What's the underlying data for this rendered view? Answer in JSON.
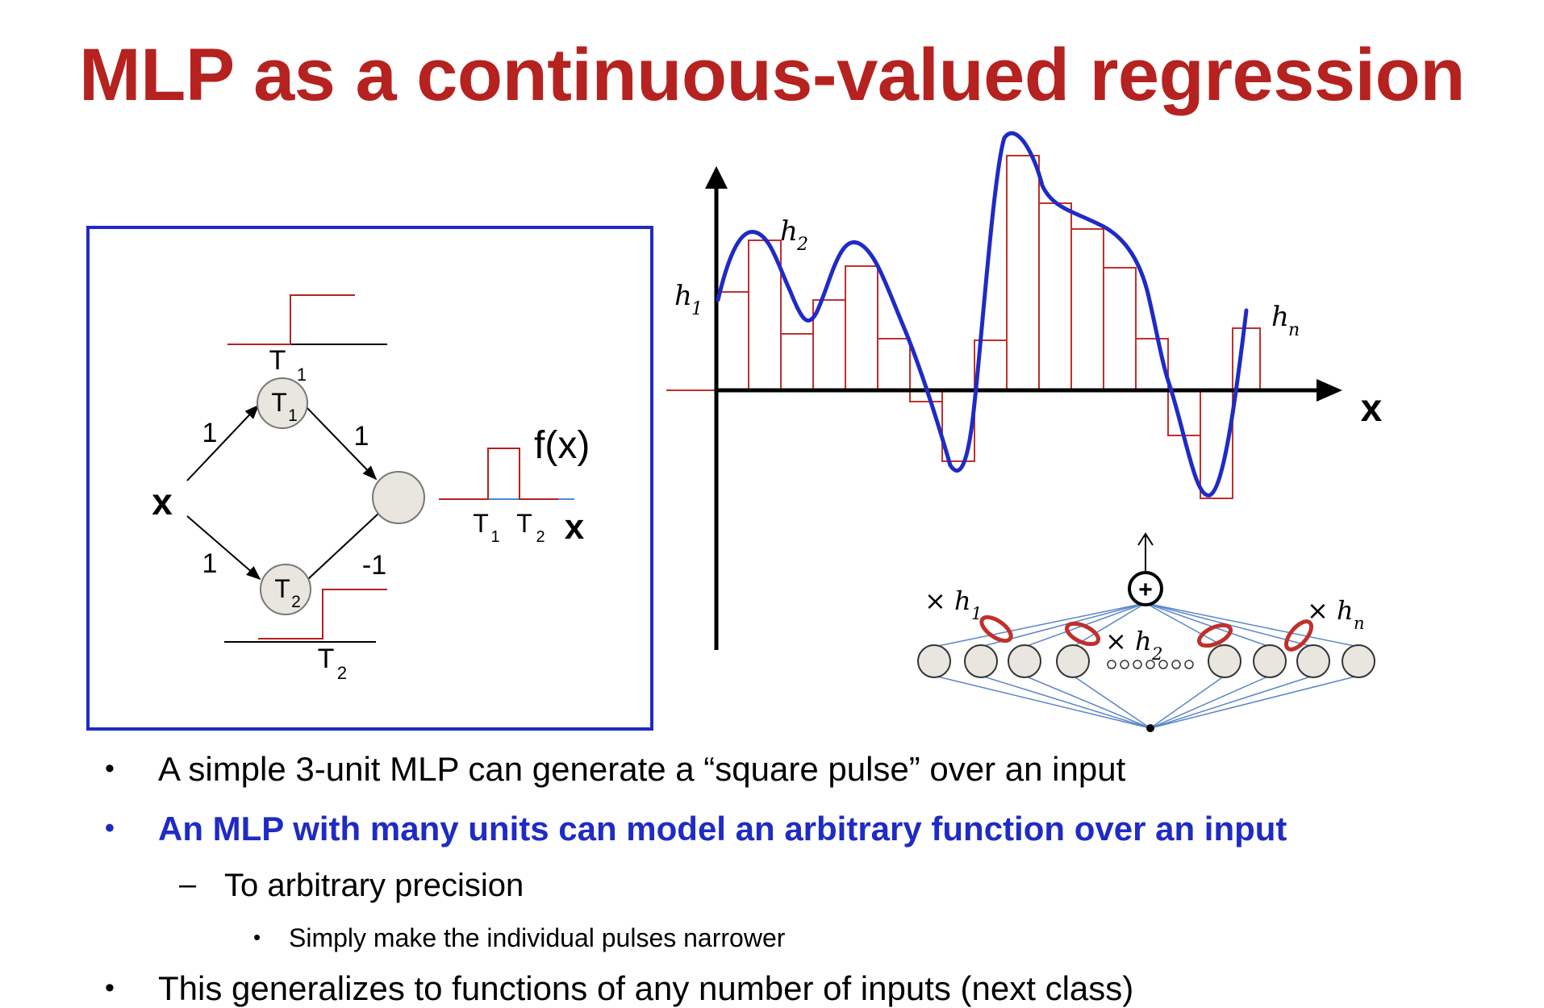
{
  "slide": {
    "title": "MLP as a continuous-valued regression"
  },
  "left_diagram": {
    "input_label": "x",
    "unit1_label": "T",
    "unit1_sub": "1",
    "unit2_label": "T",
    "unit2_sub": "2",
    "weight_in_top": "1",
    "weight_in_bottom": "1",
    "weight_out_top": "1",
    "weight_out_bottom": "-1",
    "step1_threshold": "T",
    "step1_sub": "1",
    "step2_threshold": "T",
    "step2_sub": "2",
    "output_label": "f(x)",
    "pulse_t1": "T",
    "pulse_t1_sub": "1",
    "pulse_t2": "T",
    "pulse_t2_sub": "2",
    "pulse_axis": "x"
  },
  "right_plot": {
    "x_axis_label": "x",
    "h1_label": "h",
    "h1_sub": "1",
    "h2_label": "h",
    "h2_sub": "2",
    "hn_label": "h",
    "hn_sub": "n",
    "colors": {
      "curve": "#1f2bc5",
      "bars": "#c0302b"
    }
  },
  "network": {
    "sum_symbol": "+",
    "w1_label": "× h",
    "w1_sub": "1",
    "w2_label": "× h",
    "w2_sub": "2",
    "wn_label": "× h",
    "wn_sub": "n"
  },
  "bullets": [
    {
      "marker": "•",
      "text": "A simple 3-unit MLP can generate a “square pulse” over an input"
    },
    {
      "marker": "•",
      "text": "An MLP with many units can model an arbitrary function over an input"
    },
    {
      "marker": "–",
      "text": "To arbitrary precision"
    },
    {
      "marker": "•",
      "text": "Simply make the individual pulses narrower"
    },
    {
      "marker": "•",
      "text": "This generalizes to functions of any number of inputs (next class)"
    }
  ]
}
